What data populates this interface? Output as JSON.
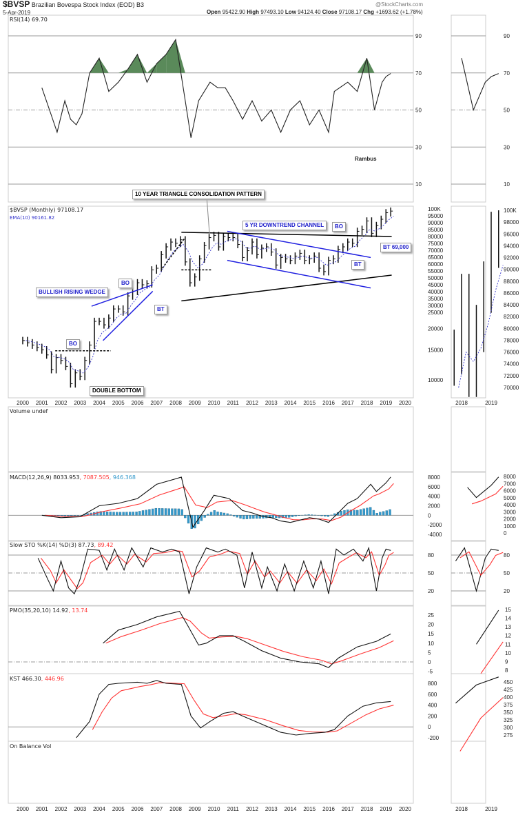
{
  "header": {
    "symbol": "$BVSP",
    "name": "Brazilian Bovespa Stock Index (EOD)",
    "exchange": "B3",
    "date": "5-Apr-2019",
    "brand": "@StockCharts.com",
    "open_label": "Open",
    "open": "95422.90",
    "high_label": "High",
    "high": "97493.10",
    "low_label": "Low",
    "low": "94124.40",
    "close_label": "Close",
    "close": "97108.17",
    "chg_label": "Chg",
    "chg": "+1693.62 (+1.78%)"
  },
  "colors": {
    "price": "#000000",
    "ema": "#3333cc",
    "signal": "#ff3333",
    "hist": "#3399cc",
    "overbought_fill": "#5a8a5a",
    "trendline_blue": "#1f1fe0",
    "trendline_black": "#000000"
  },
  "chart_data": {
    "type": "line",
    "x_ticks": [
      "2000",
      "2001",
      "2002",
      "2003",
      "2004",
      "2005",
      "2006",
      "2007",
      "2008",
      "2009",
      "2010",
      "2011",
      "2012",
      "2013",
      "2014",
      "2015",
      "2016",
      "2017",
      "2018",
      "2019",
      "2020"
    ],
    "inset_x_ticks": [
      "2018",
      "2019"
    ],
    "rsi": {
      "label": "RSI(14) 69.70",
      "ticks": [
        "90",
        "70",
        "50",
        "30",
        "10"
      ],
      "values": [
        [
          2001,
          62
        ],
        [
          2001.4,
          50
        ],
        [
          2001.8,
          38
        ],
        [
          2002.2,
          55
        ],
        [
          2002.5,
          45
        ],
        [
          2002.8,
          42
        ],
        [
          2003.1,
          48
        ],
        [
          2003.5,
          70
        ],
        [
          2004,
          78
        ],
        [
          2004.5,
          60
        ],
        [
          2005,
          65
        ],
        [
          2005.5,
          72
        ],
        [
          2006,
          80
        ],
        [
          2006.5,
          65
        ],
        [
          2007,
          75
        ],
        [
          2007.5,
          80
        ],
        [
          2008,
          88
        ],
        [
          2008.5,
          55
        ],
        [
          2008.8,
          35
        ],
        [
          2009.2,
          55
        ],
        [
          2009.8,
          65
        ],
        [
          2010.2,
          62
        ],
        [
          2010.6,
          62
        ],
        [
          2011,
          55
        ],
        [
          2011.5,
          45
        ],
        [
          2012,
          55
        ],
        [
          2012.5,
          44
        ],
        [
          2013,
          50
        ],
        [
          2013.5,
          38
        ],
        [
          2014,
          50
        ],
        [
          2014.5,
          55
        ],
        [
          2015,
          42
        ],
        [
          2015.5,
          50
        ],
        [
          2016,
          38
        ],
        [
          2016.3,
          60
        ],
        [
          2017,
          65
        ],
        [
          2017.5,
          60
        ],
        [
          2018,
          78
        ],
        [
          2018.4,
          50
        ],
        [
          2018.8,
          65
        ],
        [
          2019,
          68
        ],
        [
          2019.25,
          69.7
        ]
      ]
    },
    "price": {
      "label": "$BVSP (Monthly) 97108.17",
      "ema_label": "EMA(10) 90161.82",
      "scale": "log",
      "ticks": [
        "100K",
        "95000",
        "90000",
        "85000",
        "80000",
        "75000",
        "70000",
        "65000",
        "60000",
        "55000",
        "50000",
        "45000",
        "40000",
        "35000",
        "30000",
        "25000",
        "20000",
        "15000",
        "10000"
      ],
      "inset_ticks": [
        "100K",
        "98000",
        "96000",
        "94000",
        "92000",
        "90000",
        "88000",
        "86000",
        "84000",
        "82000",
        "80000",
        "78000",
        "76000",
        "74000",
        "72000",
        "70000"
      ],
      "closes": [
        [
          2000,
          17000
        ],
        [
          2000.25,
          16500
        ],
        [
          2000.5,
          16000
        ],
        [
          2000.75,
          15500
        ],
        [
          2001,
          15000
        ],
        [
          2001.25,
          14000
        ],
        [
          2001.5,
          11500
        ],
        [
          2001.75,
          13500
        ],
        [
          2002,
          13000
        ],
        [
          2002.25,
          12000
        ],
        [
          2002.5,
          9500
        ],
        [
          2002.75,
          11000
        ],
        [
          2003,
          10500
        ],
        [
          2003.25,
          13000
        ],
        [
          2003.5,
          16000
        ],
        [
          2003.75,
          22000
        ],
        [
          2004,
          22000
        ],
        [
          2004.25,
          21000
        ],
        [
          2004.5,
          23000
        ],
        [
          2004.75,
          26000
        ],
        [
          2005,
          26000
        ],
        [
          2005.25,
          25000
        ],
        [
          2005.5,
          31000
        ],
        [
          2005.75,
          33000
        ],
        [
          2006,
          37000
        ],
        [
          2006.25,
          36000
        ],
        [
          2006.5,
          36500
        ],
        [
          2006.75,
          44000
        ],
        [
          2007,
          45000
        ],
        [
          2007.25,
          54000
        ],
        [
          2007.5,
          60000
        ],
        [
          2007.75,
          64000
        ],
        [
          2008,
          63000
        ],
        [
          2008.25,
          66000
        ],
        [
          2008.5,
          49000
        ],
        [
          2008.75,
          37000
        ],
        [
          2009,
          40000
        ],
        [
          2009.25,
          51000
        ],
        [
          2009.5,
          61000
        ],
        [
          2009.75,
          68000
        ],
        [
          2010,
          70000
        ],
        [
          2010.25,
          60000
        ],
        [
          2010.5,
          69000
        ],
        [
          2010.75,
          68000
        ],
        [
          2011,
          68000
        ],
        [
          2011.25,
          62000
        ],
        [
          2011.5,
          52000
        ],
        [
          2011.75,
          57000
        ],
        [
          2012,
          64000
        ],
        [
          2012.25,
          54000
        ],
        [
          2012.5,
          59000
        ],
        [
          2012.75,
          60000
        ],
        [
          2013,
          56000
        ],
        [
          2013.25,
          47000
        ],
        [
          2013.5,
          52000
        ],
        [
          2013.75,
          51000
        ],
        [
          2014,
          50000
        ],
        [
          2014.25,
          53000
        ],
        [
          2014.5,
          55000
        ],
        [
          2014.75,
          50000
        ],
        [
          2015,
          51000
        ],
        [
          2015.25,
          53000
        ],
        [
          2015.5,
          45000
        ],
        [
          2015.75,
          43000
        ],
        [
          2016,
          50000
        ],
        [
          2016.25,
          51000
        ],
        [
          2016.5,
          58000
        ],
        [
          2016.75,
          60000
        ],
        [
          2017,
          64000
        ],
        [
          2017.25,
          63000
        ],
        [
          2017.5,
          74000
        ],
        [
          2017.75,
          76000
        ],
        [
          2018,
          85000
        ],
        [
          2018.25,
          72000
        ],
        [
          2018.5,
          80000
        ],
        [
          2018.75,
          87000
        ],
        [
          2019,
          95000
        ],
        [
          2019.25,
          97108.17
        ]
      ]
    },
    "annotations": {
      "triangle": "10 YEAR TRIANGLE CONSOLIDATION PATTERN",
      "channel": "5 YR DOWNTREND CHANNEL",
      "wedge": "BULLISH RISING WEDGE",
      "double_bottom": "DOUBLE BOTTOM",
      "bo": "BO",
      "bt": "BT",
      "bt69": "BT 69,000",
      "author": "Rambus"
    },
    "volume": {
      "label": "Volume undef"
    },
    "macd": {
      "label": "MACD(12,26,9) 8033.953",
      "signal_label": ", 7087.505",
      "hist_label": ", 946.368",
      "ticks": [
        "8000",
        "6000",
        "4000",
        "2000",
        "0",
        "-2000",
        "-4000"
      ],
      "inset_ticks": [
        "8000",
        "7000",
        "6000",
        "5000",
        "4000",
        "3000",
        "2000",
        "1000",
        "0"
      ],
      "values": [
        [
          2001,
          0
        ],
        [
          2002,
          -500
        ],
        [
          2003,
          -300
        ],
        [
          2004,
          2000
        ],
        [
          2005,
          2500
        ],
        [
          2006,
          3500
        ],
        [
          2007,
          6500
        ],
        [
          2008.3,
          8000
        ],
        [
          2008.9,
          -2500
        ],
        [
          2009.5,
          1000
        ],
        [
          2010,
          4200
        ],
        [
          2010.8,
          3500
        ],
        [
          2011.5,
          1000
        ],
        [
          2012,
          500
        ],
        [
          2012.5,
          -200
        ],
        [
          2013,
          -500
        ],
        [
          2013.5,
          -1200
        ],
        [
          2014,
          -1500
        ],
        [
          2014.5,
          -1000
        ],
        [
          2015,
          -500
        ],
        [
          2015.5,
          -800
        ],
        [
          2016,
          -1500
        ],
        [
          2016.5,
          500
        ],
        [
          2017,
          2500
        ],
        [
          2017.5,
          3500
        ],
        [
          2018.2,
          6500
        ],
        [
          2018.5,
          5000
        ],
        [
          2019,
          6800
        ],
        [
          2019.25,
          8034
        ]
      ]
    },
    "sto": {
      "label": "Slow STO %K(14) %D(3) 87.73",
      "signal_label": ", 89.42",
      "ticks": [
        "80",
        "50",
        "20"
      ],
      "values": [
        [
          2000.8,
          75
        ],
        [
          2001.3,
          40
        ],
        [
          2001.6,
          20
        ],
        [
          2002,
          70
        ],
        [
          2002.4,
          25
        ],
        [
          2002.7,
          15
        ],
        [
          2003,
          40
        ],
        [
          2003.4,
          90
        ],
        [
          2004,
          88
        ],
        [
          2004.4,
          55
        ],
        [
          2004.8,
          90
        ],
        [
          2005.3,
          55
        ],
        [
          2005.7,
          92
        ],
        [
          2006.3,
          60
        ],
        [
          2006.7,
          92
        ],
        [
          2007.3,
          85
        ],
        [
          2007.8,
          90
        ],
        [
          2008.2,
          85
        ],
        [
          2008.7,
          15
        ],
        [
          2009.1,
          60
        ],
        [
          2009.6,
          92
        ],
        [
          2010.2,
          85
        ],
        [
          2010.6,
          90
        ],
        [
          2011.2,
          80
        ],
        [
          2011.6,
          25
        ],
        [
          2012,
          85
        ],
        [
          2012.5,
          25
        ],
        [
          2012.8,
          60
        ],
        [
          2013.3,
          20
        ],
        [
          2013.7,
          65
        ],
        [
          2014.2,
          20
        ],
        [
          2014.7,
          70
        ],
        [
          2015.2,
          25
        ],
        [
          2015.6,
          70
        ],
        [
          2016,
          15
        ],
        [
          2016.4,
          90
        ],
        [
          2016.8,
          80
        ],
        [
          2017.3,
          90
        ],
        [
          2017.8,
          70
        ],
        [
          2018.1,
          92
        ],
        [
          2018.5,
          20
        ],
        [
          2018.8,
          75
        ],
        [
          2019,
          90
        ],
        [
          2019.25,
          87.73
        ]
      ]
    },
    "pmo": {
      "label": "PMO(35,20,10) 14.92",
      "signal_label": ", 13.74",
      "ticks": [
        "25",
        "20",
        "15",
        "10",
        "5",
        "0",
        "-5"
      ],
      "inset_ticks": [
        "15",
        "14",
        "13",
        "12",
        "11",
        "10",
        "9",
        "8"
      ],
      "values": [
        [
          2004.2,
          10
        ],
        [
          2005,
          17
        ],
        [
          2006,
          20
        ],
        [
          2007,
          24
        ],
        [
          2008.2,
          27
        ],
        [
          2008.6,
          20
        ],
        [
          2009.2,
          9
        ],
        [
          2009.6,
          10
        ],
        [
          2010.3,
          14
        ],
        [
          2011,
          14
        ],
        [
          2011.6,
          11
        ],
        [
          2012.5,
          6
        ],
        [
          2013.5,
          2
        ],
        [
          2014.5,
          0
        ],
        [
          2015.5,
          -1
        ],
        [
          2016,
          -3
        ],
        [
          2016.5,
          2
        ],
        [
          2017.5,
          8
        ],
        [
          2018.5,
          11
        ],
        [
          2019.25,
          14.92
        ]
      ]
    },
    "kst": {
      "label": "KST 466.30",
      "signal_label": ", 446.96",
      "ticks": [
        "800",
        "600",
        "400",
        "200",
        "0",
        "-200"
      ],
      "inset_ticks": [
        "450",
        "425",
        "400",
        "375",
        "350",
        "325",
        "300",
        "275"
      ],
      "values": [
        [
          2002.8,
          -200
        ],
        [
          2003.5,
          100
        ],
        [
          2004,
          600
        ],
        [
          2004.5,
          780
        ],
        [
          2005,
          800
        ],
        [
          2006,
          820
        ],
        [
          2006.5,
          800
        ],
        [
          2007,
          850
        ],
        [
          2007.5,
          800
        ],
        [
          2008.3,
          780
        ],
        [
          2008.8,
          200
        ],
        [
          2009.3,
          -20
        ],
        [
          2009.8,
          100
        ],
        [
          2010.5,
          250
        ],
        [
          2011,
          280
        ],
        [
          2011.5,
          200
        ],
        [
          2012.5,
          50
        ],
        [
          2013.5,
          -100
        ],
        [
          2014.3,
          -150
        ],
        [
          2015,
          -120
        ],
        [
          2015.8,
          -100
        ],
        [
          2016.3,
          -50
        ],
        [
          2017,
          200
        ],
        [
          2017.8,
          380
        ],
        [
          2018.5,
          440
        ],
        [
          2019.25,
          466.3
        ]
      ]
    },
    "obv": {
      "label": "On Balance Vol"
    }
  }
}
